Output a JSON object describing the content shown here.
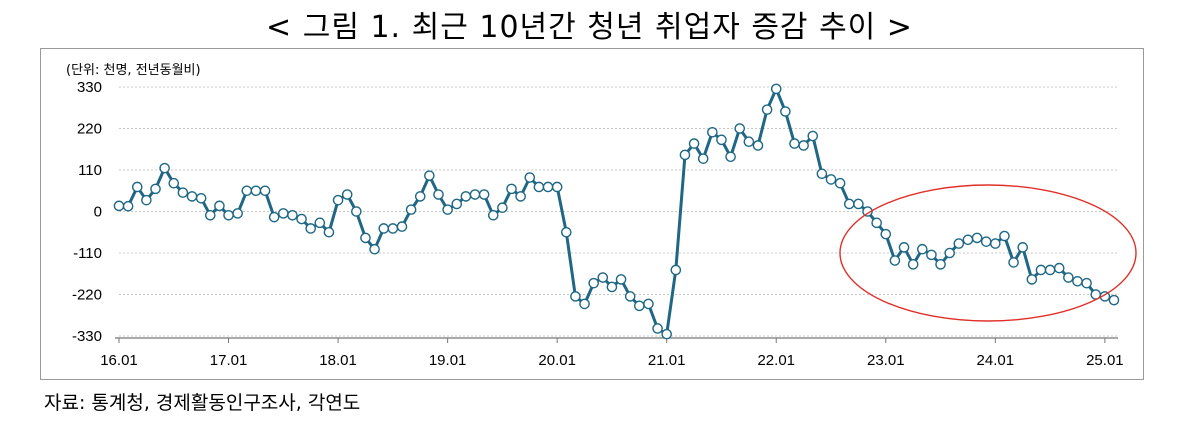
{
  "title": "< 그림 1. 최근 10년간 청년 취업자 증감 추이 >",
  "unit_note": "(단위: 천명, 전년동월비)",
  "source": "자료: 통계청, 경제활동인구조사, 각연도",
  "chart_data": {
    "type": "line",
    "title": "< 그림 1. 최근 10년간 청년 취업자 증감 추이 >",
    "xlabel": "",
    "ylabel": "",
    "ylim": [
      -330,
      330
    ],
    "yticks": [
      330,
      220,
      110,
      0,
      -110,
      -220,
      -330
    ],
    "ytick_labels": [
      "330",
      "220",
      "110",
      "0",
      "-110",
      "-220",
      "-330"
    ],
    "xtick_labels": [
      "16.01",
      "17.01",
      "18.01",
      "19.01",
      "20.01",
      "21.01",
      "22.01",
      "23.01",
      "24.01",
      "25.01"
    ],
    "xtick_index": [
      0,
      12,
      24,
      36,
      48,
      60,
      72,
      84,
      96,
      108
    ],
    "grid": "horizontal dashed",
    "line_color": "#1f6784",
    "marker_fill": "#ffffff",
    "annotation": "red ellipse highlighting 23.01–25.01",
    "annotation_color": "#e0302a",
    "series": [
      {
        "values": [
          15,
          14,
          65,
          30,
          60,
          115,
          75,
          50,
          40,
          35,
          -10,
          15,
          -10,
          -5,
          55,
          55,
          55,
          -15,
          -5,
          -10,
          -20,
          -45,
          -30,
          -55,
          30,
          45,
          0,
          -70,
          -100,
          -45,
          -45,
          -40,
          5,
          40,
          95,
          45,
          5,
          20,
          40,
          45,
          45,
          -10,
          10,
          60,
          40,
          90,
          65,
          65,
          65,
          -55,
          -225,
          -245,
          -190,
          -175,
          -200,
          -180,
          -225,
          -250,
          -245,
          -310,
          -325,
          -155,
          150,
          180,
          140,
          210,
          190,
          145,
          220,
          185,
          175,
          270,
          325,
          265,
          180,
          175,
          200,
          100,
          85,
          75,
          20,
          20,
          0,
          -30,
          -60,
          -130,
          -95,
          -140,
          -100,
          -115,
          -140,
          -110,
          -85,
          -75,
          -70,
          -80,
          -85,
          -65,
          -135,
          -95,
          -180,
          -155,
          -155,
          -150,
          -175,
          -185,
          -190,
          -220,
          -225,
          -235
        ]
      }
    ]
  }
}
